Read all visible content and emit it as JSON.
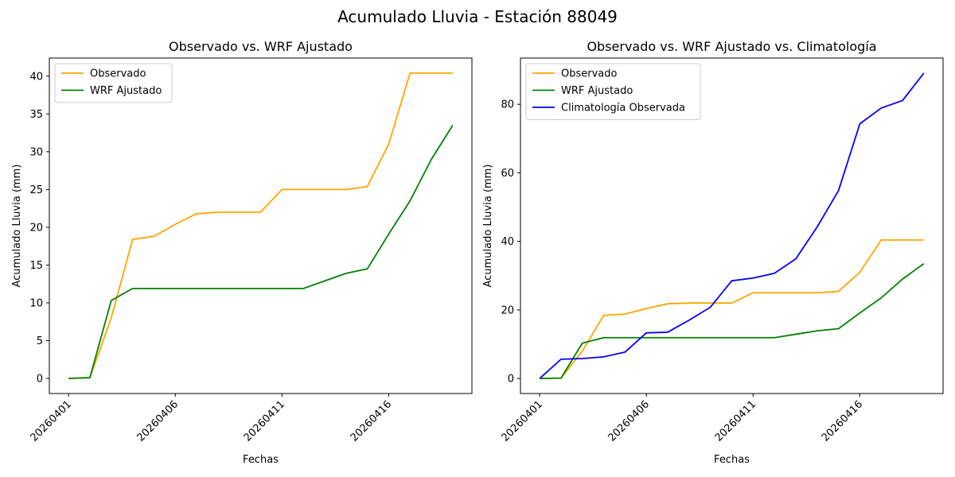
{
  "figure_title": "Acumulado Lluvia - Estación 88049",
  "chart_data": [
    {
      "type": "line",
      "title": "Observado vs. WRF Ajustado",
      "xlabel": "Fechas",
      "ylabel": "Acumulado Lluvia (mm)",
      "x": [
        "20260401",
        "20260402",
        "20260403",
        "20260404",
        "20260405",
        "20260406",
        "20260407",
        "20260408",
        "20260409",
        "20260410",
        "20260411",
        "20260412",
        "20260413",
        "20260414",
        "20260415",
        "20260416",
        "20260417",
        "20260418",
        "20260419"
      ],
      "xticks": [
        "20260401",
        "20260406",
        "20260411",
        "20260416"
      ],
      "yticks": [
        0,
        5,
        10,
        15,
        20,
        25,
        30,
        35,
        40
      ],
      "ylim": [
        -2.0,
        42.4
      ],
      "legend": "top-left",
      "grid": false,
      "series": [
        {
          "name": "Observado",
          "color": "#ffa500",
          "values": [
            0.0,
            0.1,
            8.0,
            18.4,
            18.8,
            20.4,
            21.8,
            22.0,
            22.0,
            22.0,
            25.0,
            25.0,
            25.0,
            25.0,
            25.4,
            31.0,
            40.4,
            40.4,
            40.4
          ]
        },
        {
          "name": "WRF Ajustado",
          "color": "#008000",
          "values": [
            0.0,
            0.1,
            10.3,
            11.9,
            11.9,
            11.9,
            11.9,
            11.9,
            11.9,
            11.9,
            11.9,
            11.9,
            12.9,
            13.9,
            14.5,
            19.1,
            23.5,
            29.0,
            33.5
          ]
        }
      ]
    },
    {
      "type": "line",
      "title": "Observado vs. WRF Ajustado vs. Climatología",
      "xlabel": "Fechas",
      "ylabel": "Acumulado Lluvia (mm)",
      "x": [
        "20260401",
        "20260402",
        "20260403",
        "20260404",
        "20260405",
        "20260406",
        "20260407",
        "20260408",
        "20260409",
        "20260410",
        "20260411",
        "20260412",
        "20260413",
        "20260414",
        "20260415",
        "20260416",
        "20260417",
        "20260418",
        "20260419"
      ],
      "xticks": [
        "20260401",
        "20260406",
        "20260411",
        "20260416"
      ],
      "yticks": [
        0,
        20,
        40,
        60,
        80
      ],
      "ylim": [
        -4.4,
        93.5
      ],
      "legend": "top-left",
      "grid": false,
      "series": [
        {
          "name": "Observado",
          "color": "#ffa500",
          "values": [
            0.0,
            0.1,
            8.0,
            18.4,
            18.8,
            20.4,
            21.8,
            22.0,
            22.0,
            22.0,
            25.0,
            25.0,
            25.0,
            25.0,
            25.4,
            31.0,
            40.4,
            40.4,
            40.4
          ]
        },
        {
          "name": "WRF Ajustado",
          "color": "#008000",
          "values": [
            0.0,
            0.1,
            10.3,
            11.9,
            11.9,
            11.9,
            11.9,
            11.9,
            11.9,
            11.9,
            11.9,
            11.9,
            12.9,
            13.9,
            14.5,
            19.1,
            23.5,
            29.0,
            33.5
          ]
        },
        {
          "name": "Climatología Observada",
          "color": "#0000ff",
          "values": [
            0.0,
            5.6,
            5.8,
            6.3,
            7.7,
            13.3,
            13.5,
            17.0,
            20.8,
            28.5,
            29.3,
            30.7,
            34.9,
            44.2,
            54.8,
            74.3,
            78.9,
            81.1,
            89.1
          ]
        }
      ]
    }
  ]
}
